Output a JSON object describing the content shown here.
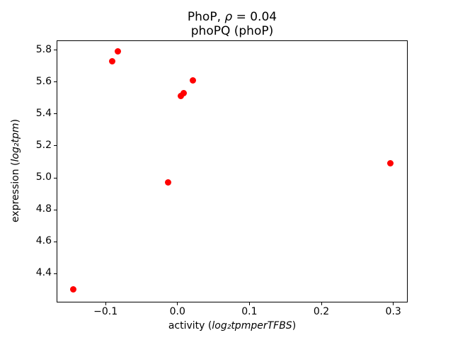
{
  "chart_data": {
    "type": "scatter",
    "title": {
      "pre": "PhoP, ",
      "rho": "ρ",
      "post": " = 0.04"
    },
    "subtitle": "phoPQ (phoP)",
    "xlabel": {
      "pre": "activity (",
      "math": "log₂tpmperTFBS",
      "post": ")"
    },
    "ylabel": {
      "pre": "expression (",
      "math": "log₂tpm",
      "post": ")"
    },
    "xlim": [
      -0.168,
      0.32
    ],
    "ylim": [
      4.22,
      5.86
    ],
    "x_ticks": {
      "values": [
        -0.1,
        0.0,
        0.1,
        0.2,
        0.3
      ],
      "labels": [
        "−0.1",
        "0.0",
        "0.1",
        "0.2",
        "0.3"
      ]
    },
    "y_ticks": {
      "values": [
        4.4,
        4.6,
        4.8,
        5.0,
        5.2,
        5.4,
        5.6,
        5.8
      ],
      "labels": [
        "4.4",
        "4.6",
        "4.8",
        "5.0",
        "5.2",
        "5.4",
        "5.6",
        "5.8"
      ]
    },
    "grid": false,
    "marker_color": "#ff0000",
    "points": [
      {
        "x": -0.145,
        "y": 4.3
      },
      {
        "x": -0.091,
        "y": 5.73
      },
      {
        "x": -0.083,
        "y": 5.79
      },
      {
        "x": -0.013,
        "y": 4.97
      },
      {
        "x": 0.005,
        "y": 5.51
      },
      {
        "x": 0.009,
        "y": 5.53
      },
      {
        "x": 0.021,
        "y": 5.61
      },
      {
        "x": 0.296,
        "y": 5.09
      }
    ]
  }
}
